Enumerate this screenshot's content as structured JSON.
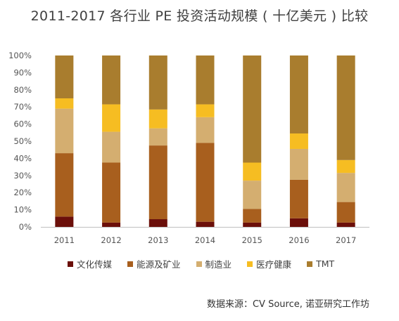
{
  "chart_data": {
    "type": "bar",
    "stacked": true,
    "percent": true,
    "title": "2011-2017 各行业 PE 投资活动规模 ( 十亿美元 ) 比较",
    "categories": [
      "2011",
      "2012",
      "2013",
      "2014",
      "2015",
      "2016",
      "2017"
    ],
    "ylim": [
      0,
      100
    ],
    "yticks": [
      "0%",
      "10%",
      "20%",
      "30%",
      "40%",
      "50%",
      "60%",
      "70%",
      "80%",
      "90%",
      "100%"
    ],
    "grid": false,
    "legend_position": "bottom",
    "series": [
      {
        "name": "文化传媒",
        "color": "#6b0f0a",
        "values": [
          6,
          2.5,
          4.5,
          3,
          2.5,
          5,
          2.5
        ]
      },
      {
        "name": "能源及矿业",
        "color": "#a85f1e",
        "values": [
          37,
          35,
          43,
          46,
          8,
          22.5,
          12
        ]
      },
      {
        "name": "制造业",
        "color": "#d4ae70",
        "values": [
          26,
          18,
          10,
          15,
          16.5,
          18,
          17
        ]
      },
      {
        "name": "医疗健康",
        "color": "#f6bd22",
        "values": [
          6,
          16,
          11,
          7.5,
          10.5,
          9,
          7.5
        ]
      },
      {
        "name": "TMT",
        "color": "#a97d2e",
        "values": [
          25,
          28.5,
          31.5,
          28.5,
          62.5,
          45.5,
          61
        ]
      }
    ]
  },
  "source": "数据来源：CV Source, 诺亚研究工作坊"
}
